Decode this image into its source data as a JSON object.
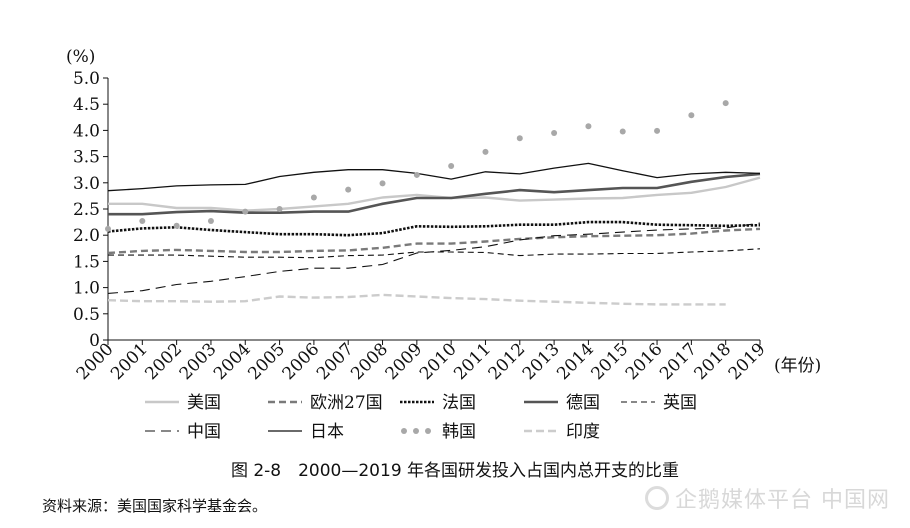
{
  "caption": "图 2-8　2000—2019 年各国研发投入占国内总开支的比重",
  "source": "资料来源：美国国家科学基金会。",
  "watermark": "企鹅媒体平台 中国网",
  "chart_data": {
    "type": "line",
    "title": "",
    "ylabel": "(%)",
    "xlabel": "(年份)",
    "ylim": [
      0,
      5.0
    ],
    "yticks": [
      "0",
      "0.5",
      "1.0",
      "1.5",
      "2.0",
      "2.5",
      "3.0",
      "3.5",
      "4.0",
      "4.5",
      "5.0"
    ],
    "x": [
      2000,
      2001,
      2002,
      2003,
      2004,
      2005,
      2006,
      2007,
      2008,
      2009,
      2010,
      2011,
      2012,
      2013,
      2014,
      2015,
      2016,
      2017,
      2018,
      2019
    ],
    "series": [
      {
        "name": "美国",
        "color": "#c8c8c8",
        "style": "solid",
        "values": [
          2.6,
          2.6,
          2.52,
          2.52,
          2.47,
          2.5,
          2.55,
          2.6,
          2.72,
          2.77,
          2.71,
          2.72,
          2.66,
          2.68,
          2.7,
          2.71,
          2.77,
          2.81,
          2.92,
          3.1
        ]
      },
      {
        "name": "欧洲27国",
        "color": "#7a7a7a",
        "style": "dash",
        "values": [
          1.66,
          1.7,
          1.72,
          1.7,
          1.68,
          1.68,
          1.7,
          1.71,
          1.76,
          1.84,
          1.84,
          1.88,
          1.93,
          1.96,
          1.98,
          1.99,
          2.0,
          2.03,
          2.09,
          2.12
        ]
      },
      {
        "name": "法国",
        "color": "#111111",
        "style": "dotted",
        "values": [
          2.07,
          2.13,
          2.15,
          2.1,
          2.06,
          2.02,
          2.02,
          2.0,
          2.04,
          2.17,
          2.16,
          2.17,
          2.2,
          2.2,
          2.25,
          2.25,
          2.2,
          2.19,
          2.18,
          2.19
        ]
      },
      {
        "name": "德国",
        "color": "#555555",
        "style": "solid-thick",
        "values": [
          2.4,
          2.4,
          2.44,
          2.46,
          2.43,
          2.43,
          2.45,
          2.45,
          2.6,
          2.71,
          2.71,
          2.79,
          2.86,
          2.82,
          2.86,
          2.9,
          2.9,
          3.02,
          3.11,
          3.17
        ]
      },
      {
        "name": "英国",
        "color": "#111111",
        "style": "dash-thin",
        "values": [
          1.62,
          1.62,
          1.62,
          1.6,
          1.58,
          1.58,
          1.57,
          1.61,
          1.62,
          1.68,
          1.68,
          1.67,
          1.61,
          1.64,
          1.64,
          1.65,
          1.65,
          1.68,
          1.7,
          1.74
        ]
      },
      {
        "name": "中国",
        "color": "#111111",
        "style": "dash-long",
        "values": [
          0.89,
          0.94,
          1.06,
          1.12,
          1.21,
          1.31,
          1.37,
          1.37,
          1.44,
          1.66,
          1.71,
          1.78,
          1.91,
          1.99,
          2.02,
          2.06,
          2.1,
          2.12,
          2.14,
          2.23
        ]
      },
      {
        "name": "日本",
        "color": "#111111",
        "style": "solid-thin",
        "values": [
          2.85,
          2.89,
          2.94,
          2.96,
          2.97,
          3.12,
          3.2,
          3.25,
          3.25,
          3.18,
          3.07,
          3.21,
          3.17,
          3.28,
          3.37,
          3.23,
          3.1,
          3.17,
          3.2,
          3.18
        ]
      },
      {
        "name": "韩国",
        "color": "#a8a8a8",
        "style": "dots",
        "values": [
          2.12,
          2.27,
          2.18,
          2.27,
          2.45,
          2.5,
          2.72,
          2.87,
          2.99,
          3.15,
          3.32,
          3.59,
          3.85,
          3.95,
          4.08,
          3.98,
          3.99,
          4.29,
          4.52,
          null
        ]
      },
      {
        "name": "印度",
        "color": "#cccccc",
        "style": "dash-light",
        "values": [
          0.76,
          0.74,
          0.74,
          0.73,
          0.74,
          0.83,
          0.81,
          0.82,
          0.86,
          0.83,
          0.8,
          0.78,
          0.75,
          0.73,
          0.71,
          0.69,
          0.68,
          0.68,
          0.68,
          null
        ]
      }
    ],
    "legend": "bottom",
    "grid": false
  }
}
